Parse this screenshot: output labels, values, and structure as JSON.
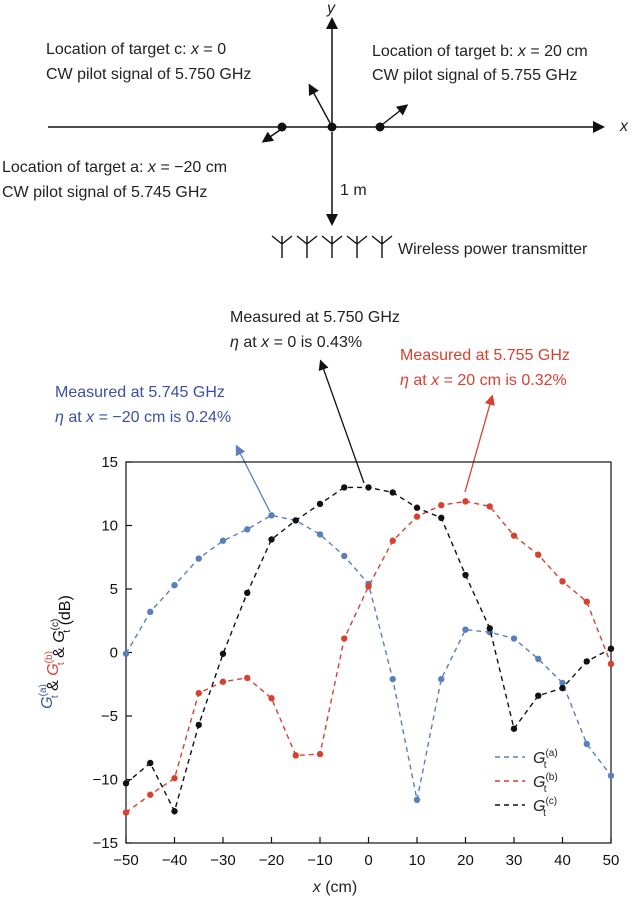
{
  "diagram": {
    "y_axis_label": "y",
    "x_axis_label": "x",
    "target_c": {
      "line1_pre": "Location of target c: ",
      "line1_var": "x",
      "line1_post": " = 0",
      "line2": "CW pilot signal of 5.750 GHz"
    },
    "target_b": {
      "line1_pre": "Location of target b: ",
      "line1_var": "x",
      "line1_post": " = 20 cm",
      "line2": "CW pilot signal of 5.755 GHz"
    },
    "target_a": {
      "line1_pre": "Location of target a: ",
      "line1_var": "x",
      "line1_post": " = −20 cm",
      "line2": "CW pilot signal of 5.745 GHz"
    },
    "distance_label": "1 m",
    "transmitter_label": "Wireless power transmitter"
  },
  "annotations": {
    "c": {
      "line1": "Measured at 5.750 GHz",
      "line2_var1": "η",
      "line2_mid": " at ",
      "line2_var2": "x",
      "line2_post": " = 0 is 0.43%",
      "color": "#111111"
    },
    "b": {
      "line1": "Measured at 5.755 GHz",
      "line2_var1": "η",
      "line2_mid": " at ",
      "line2_var2": "x",
      "line2_post": " = 20 cm is 0.32%",
      "color": "#d8412f"
    },
    "a": {
      "line1": "Measured at 5.745 GHz",
      "line2_var1": "η",
      "line2_mid": " at ",
      "line2_var2": "x",
      "line2_post": " = −20 cm is 0.24%",
      "color": "#3d4fa3"
    }
  },
  "colors": {
    "a": "#3d4fa3",
    "b": "#d8412f",
    "c": "#111111",
    "blue_line": "#5a7fbf",
    "red_line": "#d8412f"
  },
  "chart_data": {
    "type": "line",
    "xlabel": "x (cm)",
    "ylabel_parts": [
      "G",
      "(a)",
      "t",
      " & ",
      "G",
      "(b)",
      "t",
      " & ",
      "G",
      "(c)",
      "t",
      " (dB)"
    ],
    "xlim": [
      -50,
      50
    ],
    "ylim": [
      -15,
      15
    ],
    "xticks": [
      -50,
      -40,
      -30,
      -20,
      -10,
      0,
      10,
      20,
      30,
      40,
      50
    ],
    "yticks": [
      -15,
      -10,
      -5,
      0,
      5,
      10,
      15
    ],
    "xtick_labels": [
      "−50",
      "−40",
      "−30",
      "−20",
      "−10",
      "0",
      "10",
      "20",
      "30",
      "40",
      "50"
    ],
    "ytick_labels": [
      "−15",
      "−10",
      "−5",
      "0",
      "5",
      "10",
      "15"
    ],
    "legend_placement": "bottom-right",
    "x": [
      -50,
      -45,
      -40,
      -35,
      -30,
      -25,
      -20,
      -15,
      -10,
      -5,
      0,
      5,
      10,
      15,
      20,
      25,
      30,
      35,
      40,
      45,
      50
    ],
    "series": [
      {
        "key": "a",
        "name": "G",
        "sup": "(a)",
        "sub": "t",
        "values": [
          -0.1,
          3.2,
          5.3,
          7.4,
          8.8,
          9.7,
          10.8,
          10.4,
          9.3,
          7.6,
          5.4,
          -2.1,
          -11.6,
          -2.1,
          1.8,
          1.6,
          1.1,
          -0.5,
          -2.4,
          -7.2,
          -9.7
        ]
      },
      {
        "key": "b",
        "name": "G",
        "sup": "(b)",
        "sub": "t",
        "values": [
          -12.6,
          -11.2,
          -9.9,
          -3.2,
          -2.3,
          -2.0,
          -3.6,
          -8.1,
          -8.0,
          1.1,
          5.2,
          8.8,
          10.7,
          11.6,
          11.9,
          11.5,
          9.2,
          7.7,
          5.6,
          4.0,
          -0.9
        ]
      },
      {
        "key": "c",
        "name": "G",
        "sup": "(c)",
        "sub": "t",
        "values": [
          -10.3,
          -8.7,
          -12.5,
          -5.7,
          -0.1,
          4.7,
          8.9,
          10.4,
          11.7,
          13.0,
          13.0,
          12.6,
          11.4,
          10.6,
          6.1,
          1.9,
          -6.0,
          -3.4,
          -2.8,
          -0.7,
          0.3
        ]
      }
    ]
  }
}
